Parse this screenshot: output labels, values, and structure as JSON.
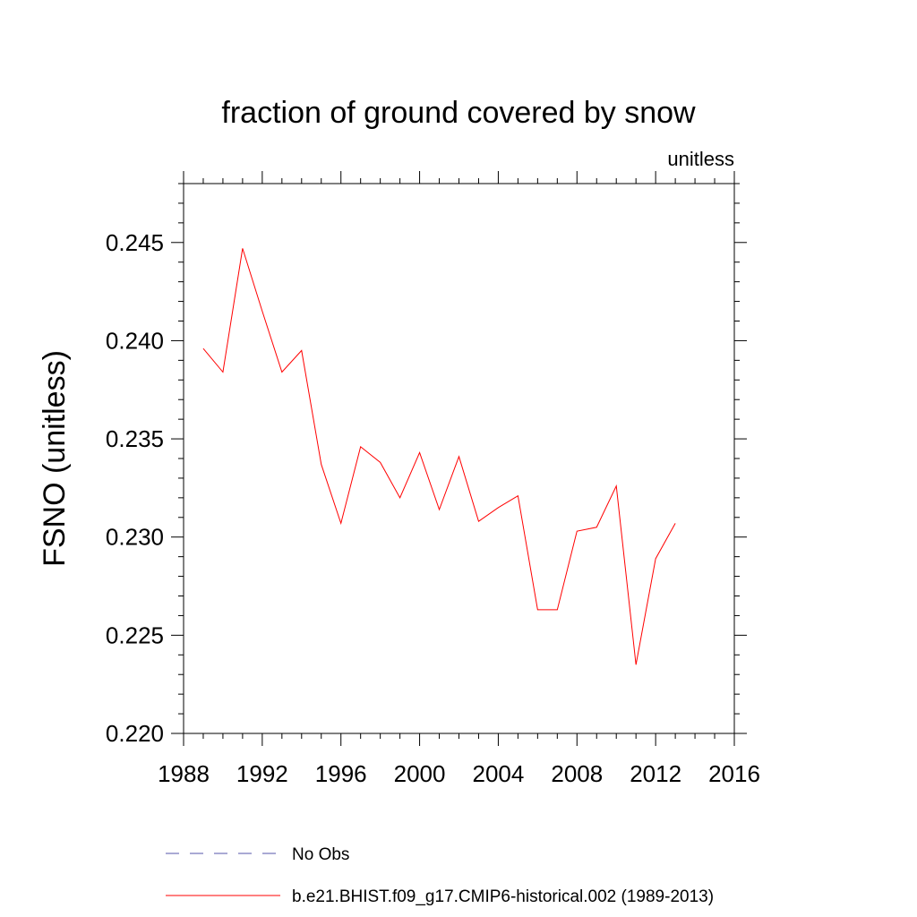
{
  "chart_data": {
    "type": "line",
    "title": "fraction of ground covered by snow",
    "units_label": "unitless",
    "ylabel": "FSNO  (unitless)",
    "xlabel": "",
    "xlim": [
      1988,
      2016
    ],
    "ylim": [
      0.22,
      0.248
    ],
    "x_ticks": [
      1988,
      1992,
      1996,
      2000,
      2004,
      2008,
      2012,
      2016
    ],
    "x_tick_labels": [
      "1988",
      "1992",
      "1996",
      "2000",
      "2004",
      "2008",
      "2012",
      "2016"
    ],
    "y_ticks": [
      0.22,
      0.225,
      0.23,
      0.235,
      0.24,
      0.245
    ],
    "y_tick_labels": [
      "0.220",
      "0.225",
      "0.230",
      "0.235",
      "0.240",
      "0.245"
    ],
    "grid": false,
    "legend_position": "bottom",
    "series": [
      {
        "name": "No Obs",
        "color": "#5555aa",
        "style": "dashed",
        "x": [],
        "values": []
      },
      {
        "name": "b.e21.BHIST.f09_g17.CMIP6-historical.002 (1989-2013)",
        "color": "#ff0000",
        "style": "solid",
        "x": [
          1989,
          1990,
          1991,
          1992,
          1993,
          1994,
          1995,
          1996,
          1997,
          1998,
          1999,
          2000,
          2001,
          2002,
          2003,
          2004,
          2005,
          2006,
          2007,
          2008,
          2009,
          2010,
          2011,
          2012,
          2013
        ],
        "values": [
          0.2396,
          0.2384,
          0.2447,
          0.2415,
          0.2384,
          0.2395,
          0.2337,
          0.2307,
          0.2346,
          0.2338,
          0.232,
          0.2343,
          0.2314,
          0.2341,
          0.2308,
          0.2315,
          0.2321,
          0.2263,
          0.2263,
          0.2303,
          0.2305,
          0.2326,
          0.2235,
          0.2289,
          0.2307
        ]
      }
    ]
  }
}
